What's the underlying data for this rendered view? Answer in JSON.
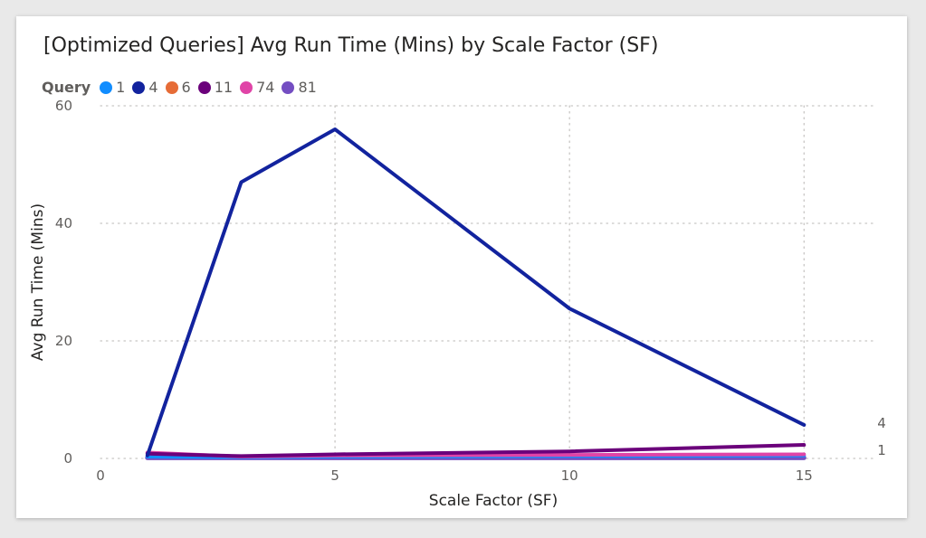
{
  "chart_data": {
    "type": "line",
    "title": "[Optimized Queries] Avg Run Time (Mins) by Scale Factor (SF)",
    "xlabel": "Scale Factor (SF)",
    "ylabel": "Avg Run Time (Mins)",
    "xlim": [
      0,
      16.5
    ],
    "ylim": [
      0,
      60
    ],
    "x_ticks": [
      "0",
      "5",
      "10",
      "15"
    ],
    "y_ticks": [
      "0",
      "20",
      "40",
      "60"
    ],
    "grid": true,
    "legend_title": "Query",
    "legend_position": "top-left",
    "series": [
      {
        "name": "1",
        "color": "#118DFF",
        "x": [
          1,
          3,
          5,
          10,
          15
        ],
        "y": [
          0.3,
          0.2,
          0.3,
          0.4,
          0.5
        ]
      },
      {
        "name": "4",
        "color": "#12239E",
        "x": [
          1,
          3,
          5,
          10,
          15
        ],
        "y": [
          0.5,
          47,
          56,
          25.5,
          5.7
        ]
      },
      {
        "name": "6",
        "color": "#E66C37",
        "x": [
          1,
          3,
          5,
          10,
          15
        ],
        "y": [
          0.1,
          0.1,
          0.1,
          0.2,
          0.2
        ]
      },
      {
        "name": "11",
        "color": "#6B007B",
        "x": [
          1,
          3,
          5,
          10,
          15
        ],
        "y": [
          0.8,
          0.4,
          0.7,
          1.2,
          2.3
        ]
      },
      {
        "name": "74",
        "color": "#E044A7",
        "x": [
          1,
          3,
          5,
          10,
          15
        ],
        "y": [
          1.0,
          0.3,
          0.5,
          0.6,
          0.7
        ]
      },
      {
        "name": "81",
        "color": "#744EC2",
        "x": [
          1,
          3,
          5,
          10,
          15
        ],
        "y": [
          0.1,
          0.1,
          0.1,
          0.1,
          0.1
        ]
      }
    ],
    "end_labels": [
      "4",
      "1"
    ]
  }
}
